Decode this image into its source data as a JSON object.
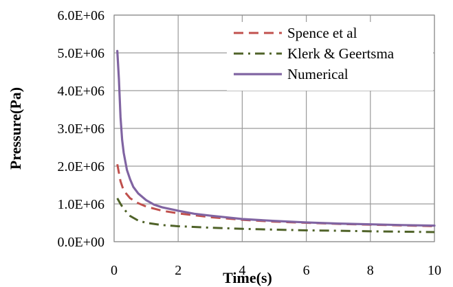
{
  "chart_data": {
    "type": "line",
    "title": "",
    "xlabel": "Time(s)",
    "ylabel": "Pressure(Pa)",
    "xlim": [
      0,
      10
    ],
    "ylim": [
      0,
      6000000
    ],
    "x_ticks": [
      0,
      2,
      4,
      6,
      8,
      10
    ],
    "x_tick_labels": [
      "0",
      "2",
      "4",
      "6",
      "8",
      "10"
    ],
    "y_ticks": [
      0,
      1000000,
      2000000,
      3000000,
      4000000,
      5000000,
      6000000
    ],
    "y_tick_labels": [
      "0.0E+00",
      "1.0E+06",
      "2.0E+06",
      "3.0E+06",
      "4.0E+06",
      "5.0E+06",
      "6.0E+06"
    ],
    "grid": true,
    "legend_position": "top-right",
    "series": [
      {
        "name": "Spence et al",
        "color": "#c0504d",
        "style": "dashed",
        "x": [
          0.1,
          0.2,
          0.3,
          0.5,
          0.75,
          1,
          1.5,
          2,
          3,
          4,
          5,
          6,
          7,
          8,
          9,
          10
        ],
        "y": [
          2050000,
          1600000,
          1350000,
          1150000,
          1020000,
          930000,
          820000,
          750000,
          650000,
          580000,
          530000,
          500000,
          470000,
          450000,
          430000,
          410000
        ]
      },
      {
        "name": "Klerk & Geertsma",
        "color": "#4f6228",
        "style": "dash-dot",
        "x": [
          0.1,
          0.2,
          0.3,
          0.5,
          0.75,
          1,
          1.5,
          2,
          3,
          4,
          5,
          6,
          7,
          8,
          9,
          10
        ],
        "y": [
          1150000,
          1000000,
          870000,
          680000,
          560000,
          500000,
          440000,
          410000,
          370000,
          340000,
          320000,
          300000,
          290000,
          275000,
          265000,
          255000
        ]
      },
      {
        "name": "Numerical",
        "color": "#8064a2",
        "style": "solid",
        "x": [
          0.1,
          0.15,
          0.2,
          0.25,
          0.3,
          0.4,
          0.5,
          0.6,
          0.75,
          1,
          1.25,
          1.5,
          2,
          2.5,
          3,
          4,
          5,
          6,
          7,
          8,
          9,
          10
        ],
        "y": [
          5050000,
          4300000,
          3300000,
          2700000,
          2350000,
          1900000,
          1650000,
          1450000,
          1280000,
          1100000,
          980000,
          910000,
          820000,
          740000,
          690000,
          600000,
          550000,
          510000,
          480000,
          460000,
          440000,
          425000
        ]
      }
    ]
  }
}
